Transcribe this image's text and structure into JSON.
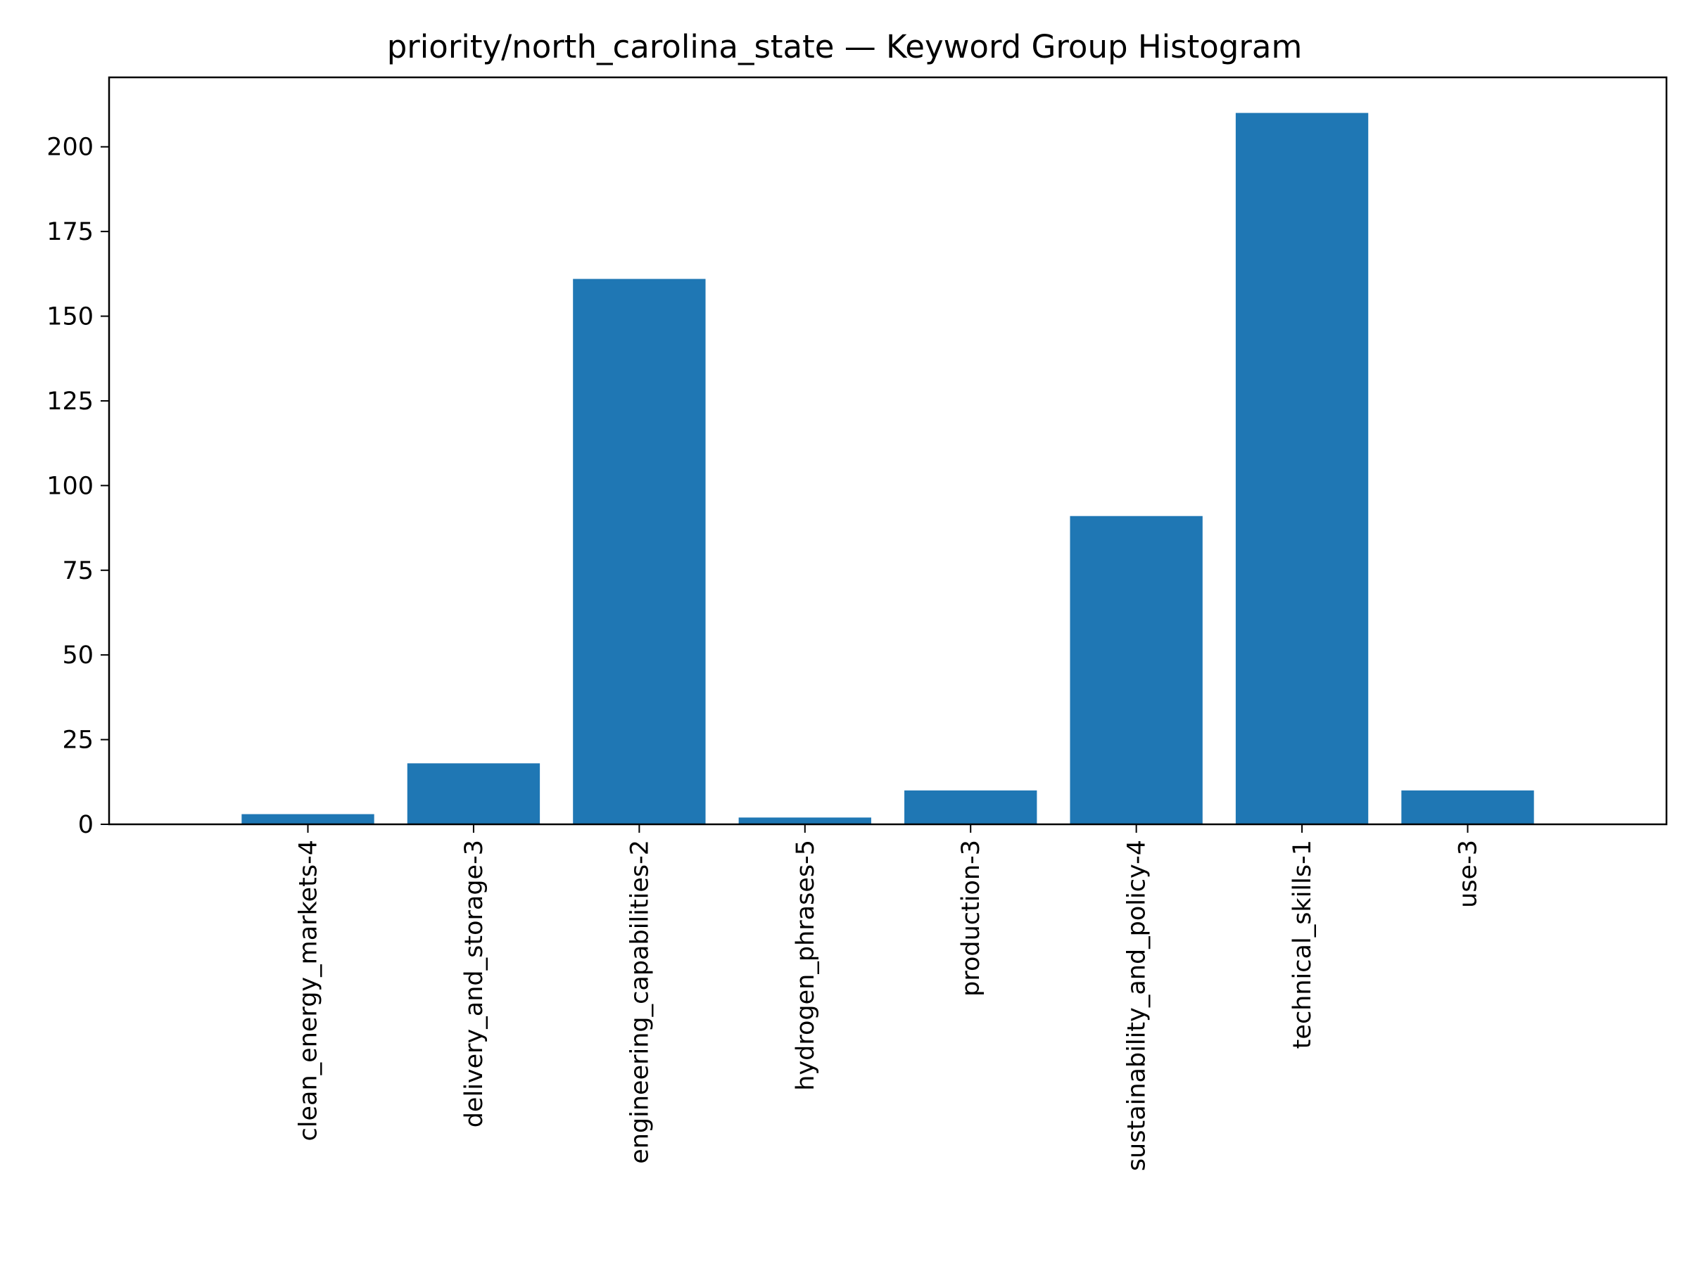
{
  "chart_data": {
    "type": "bar",
    "title": "priority/north_carolina_state — Keyword Group Histogram",
    "xlabel": "",
    "ylabel": "",
    "categories": [
      "clean_energy_markets-4",
      "delivery_and_storage-3",
      "engineering_capabilities-2",
      "hydrogen_phrases-5",
      "production-3",
      "sustainability_and_policy-4",
      "technical_skills-1",
      "use-3"
    ],
    "values": [
      3,
      18,
      161,
      2,
      10,
      91,
      210,
      10
    ],
    "ylim": [
      0,
      220.5
    ],
    "yticks": [
      0,
      25,
      50,
      75,
      100,
      125,
      150,
      175,
      200
    ],
    "bar_color": "#1f77b4",
    "grid": false,
    "legend": "none"
  }
}
